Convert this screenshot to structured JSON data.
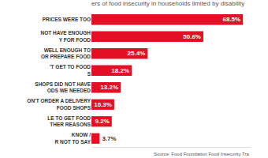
{
  "chart_data": {
    "type": "bar",
    "title": "ers of food insecurity in households limited by disability",
    "orientation": "horizontal",
    "categories": [
      "PRICES WERE TOO",
      "NOT HAVE ENOUGH\nY FOR FOOD",
      "WELL ENOUGH TO\nOR PREPARE FOOD",
      "'T GET TO FOOD\nS",
      "SHOPS DID NOT HAVE\nODS WE NEEDED",
      "ON'T ORDER A DELIVERY\nFOOD SHOPS",
      "LE TO GET FOOD\nTHER REASONS",
      "KNOW /\nR NOT TO SAY"
    ],
    "values": [
      68.5,
      50.6,
      25.4,
      18.2,
      13.2,
      10.3,
      9.2,
      3.7
    ],
    "value_labels": [
      "68.5%",
      "50.6%",
      "25.4%",
      "18.2%",
      "13.2%",
      "10.3%",
      "9.2%",
      "3.7%"
    ],
    "color": "#e30f25",
    "xlim": [
      0,
      72
    ],
    "data_labels": true,
    "tick_labels": "y",
    "grid": false,
    "annotations": [
      "Source: Food Foundation Food Insecurity Tra"
    ]
  }
}
